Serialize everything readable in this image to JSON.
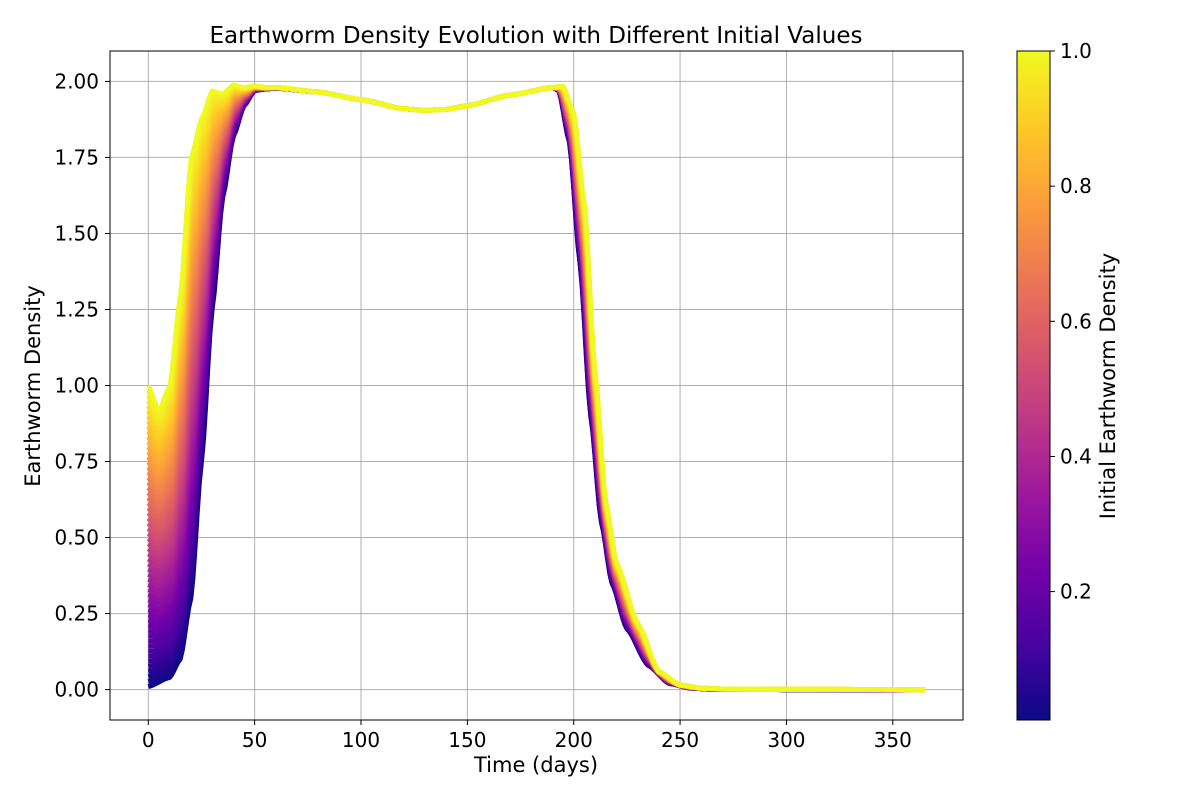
{
  "chart_data": {
    "type": "line",
    "title": "Earthworm Density Evolution with Different Initial Values",
    "xlabel": "Time (days)",
    "ylabel": "Earthworm Density",
    "xlim": [
      -18,
      383
    ],
    "ylim": [
      -0.1,
      2.1
    ],
    "x_ticks": [
      "0",
      "50",
      "100",
      "150",
      "200",
      "250",
      "300",
      "350"
    ],
    "y_ticks": [
      "0.00",
      "0.25",
      "0.50",
      "0.75",
      "1.00",
      "1.25",
      "1.50",
      "1.75",
      "2.00"
    ],
    "grid": true,
    "colormap": "plasma",
    "colorbar": {
      "label": "Initial Earthworm Density",
      "range": [
        0.01,
        1.0
      ],
      "ticks": [
        "0.2",
        "0.4",
        "0.6",
        "0.8",
        "1.0"
      ]
    },
    "x_end": 365,
    "series_count": 60,
    "series_initial_range": [
      0.01,
      1.0
    ],
    "highest_initial_series": {
      "initial_value": 1.0,
      "x": [
        0,
        5,
        10,
        15,
        20,
        25,
        30,
        35,
        40,
        45,
        50,
        55,
        60,
        80,
        100,
        120,
        130,
        140,
        150,
        170,
        190,
        195,
        200,
        205,
        210,
        215,
        220,
        230,
        240,
        250,
        260,
        270,
        300,
        365
      ],
      "y": [
        1.0,
        0.92,
        1.0,
        1.3,
        1.75,
        1.88,
        1.97,
        1.96,
        1.99,
        1.98,
        1.985,
        1.98,
        1.98,
        1.965,
        1.94,
        1.91,
        1.905,
        1.908,
        1.92,
        1.955,
        1.98,
        1.985,
        1.9,
        1.6,
        1.05,
        0.62,
        0.42,
        0.22,
        0.06,
        0.015,
        0.005,
        0.002,
        0.001,
        0.0
      ]
    },
    "lowest_initial_series": {
      "initial_value": 0.01,
      "x": [
        0,
        10,
        15,
        20,
        25,
        30,
        35,
        40,
        45,
        50,
        55,
        60,
        80,
        100,
        120,
        130,
        140,
        150,
        170,
        190,
        193,
        198,
        203,
        208,
        213,
        218,
        225,
        235,
        245,
        255,
        265,
        300,
        365
      ],
      "y": [
        0.01,
        0.04,
        0.1,
        0.3,
        0.75,
        1.25,
        1.62,
        1.82,
        1.92,
        1.97,
        1.975,
        1.978,
        1.965,
        1.94,
        1.91,
        1.905,
        1.908,
        1.92,
        1.955,
        1.98,
        1.97,
        1.8,
        1.4,
        0.9,
        0.55,
        0.35,
        0.2,
        0.08,
        0.02,
        0.005,
        0.001,
        0.0,
        0.0
      ]
    }
  },
  "colors": {
    "plasma": [
      "#0d0887",
      "#46039f",
      "#7201a8",
      "#9c179e",
      "#bd3786",
      "#d8576b",
      "#ed7953",
      "#fb9f3a",
      "#fdca26",
      "#f0f921"
    ],
    "grid": "#b0b0b0"
  }
}
